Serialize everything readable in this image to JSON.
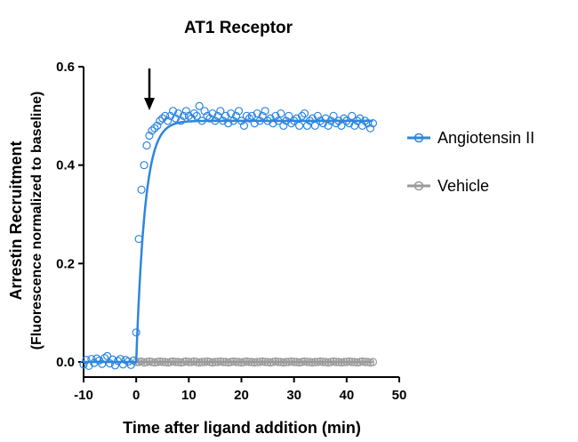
{
  "chart_data": {
    "type": "scatter",
    "title": "AT1 Receptor",
    "xlabel": "Time after ligand addition (min)",
    "ylabel_line1": "Arrestin Recruitment",
    "ylabel_line2": "(Fluorescence normalized to baseline)",
    "xlim": [
      -10,
      50
    ],
    "ylim": [
      0,
      0.6
    ],
    "x_ticks": [
      -10,
      0,
      10,
      20,
      30,
      40,
      50
    ],
    "x_tick_labels": [
      "-10",
      "0",
      "10",
      "20",
      "30",
      "40",
      "50"
    ],
    "y_ticks": [
      0,
      0.2,
      0.4,
      0.6
    ],
    "y_tick_labels": [
      "0.0",
      "0.2",
      "0.4",
      "0.6"
    ],
    "annotation": {
      "type": "arrow",
      "x": 2,
      "meaning": "ligand addition"
    },
    "legend_position": "right",
    "grid": false,
    "series": [
      {
        "name": "Angiotensin II",
        "color": "#2e86de",
        "fit": {
          "type": "exponential-rise",
          "start_x": 0,
          "plateau": 0.49
        },
        "x": [
          -10,
          -9.5,
          -9,
          -8.5,
          -8,
          -7.5,
          -7,
          -6.5,
          -6,
          -5.5,
          -5,
          -4.5,
          -4,
          -3.5,
          -3,
          -2.5,
          -2,
          -1.5,
          -1,
          -0.5,
          0,
          0.5,
          1,
          1.5,
          2,
          2.5,
          3,
          3.5,
          4,
          4.5,
          5,
          5.5,
          6,
          6.5,
          7,
          7.5,
          8,
          8.5,
          9,
          9.5,
          10,
          10.5,
          11,
          11.5,
          12,
          12.5,
          13,
          13.5,
          14,
          14.5,
          15,
          15.5,
          16,
          16.5,
          17,
          17.5,
          18,
          18.5,
          19,
          19.5,
          20,
          20.5,
          21,
          21.5,
          22,
          22.5,
          23,
          23.5,
          24,
          24.5,
          25,
          25.5,
          26,
          26.5,
          27,
          27.5,
          28,
          28.5,
          29,
          29.5,
          30,
          30.5,
          31,
          31.5,
          32,
          32.5,
          33,
          33.5,
          34,
          34.5,
          35,
          35.5,
          36,
          36.5,
          37,
          37.5,
          38,
          38.5,
          39,
          39.5,
          40,
          40.5,
          41,
          41.5,
          42,
          42.5,
          43,
          43.5,
          44,
          44.5,
          45
        ],
        "y": [
          -0.005,
          0.004,
          -0.008,
          0.006,
          -0.002,
          0.007,
          0.003,
          -0.004,
          0.008,
          0.012,
          -0.003,
          0.005,
          -0.007,
          0.002,
          0.006,
          -0.005,
          0.004,
          0.001,
          -0.006,
          0.003,
          0.06,
          0.25,
          0.35,
          0.4,
          0.44,
          0.46,
          0.47,
          0.475,
          0.48,
          0.49,
          0.495,
          0.5,
          0.49,
          0.5,
          0.51,
          0.495,
          0.505,
          0.49,
          0.5,
          0.51,
          0.5,
          0.495,
          0.505,
          0.5,
          0.52,
          0.49,
          0.51,
          0.5,
          0.495,
          0.505,
          0.49,
          0.5,
          0.51,
          0.49,
          0.5,
          0.485,
          0.505,
          0.49,
          0.5,
          0.51,
          0.49,
          0.48,
          0.5,
          0.495,
          0.5,
          0.485,
          0.505,
          0.49,
          0.5,
          0.51,
          0.49,
          0.495,
          0.485,
          0.5,
          0.49,
          0.505,
          0.48,
          0.49,
          0.5,
          0.485,
          0.49,
          0.495,
          0.48,
          0.5,
          0.505,
          0.48,
          0.49,
          0.495,
          0.48,
          0.5,
          0.49,
          0.485,
          0.495,
          0.48,
          0.49,
          0.5,
          0.485,
          0.49,
          0.48,
          0.495,
          0.49,
          0.485,
          0.5,
          0.48,
          0.49,
          0.495,
          0.48,
          0.49,
          0.485,
          0.475,
          0.485
        ]
      },
      {
        "name": "Vehicle",
        "color": "#9a9a9a",
        "fit": {
          "type": "flat",
          "value": 0.0
        },
        "x": [
          0,
          0.5,
          1,
          1.5,
          2,
          2.5,
          3,
          3.5,
          4,
          4.5,
          5,
          5.5,
          6,
          6.5,
          7,
          7.5,
          8,
          8.5,
          9,
          9.5,
          10,
          10.5,
          11,
          11.5,
          12,
          12.5,
          13,
          13.5,
          14,
          14.5,
          15,
          15.5,
          16,
          16.5,
          17,
          17.5,
          18,
          18.5,
          19,
          19.5,
          20,
          20.5,
          21,
          21.5,
          22,
          22.5,
          23,
          23.5,
          24,
          24.5,
          25,
          25.5,
          26,
          26.5,
          27,
          27.5,
          28,
          28.5,
          29,
          29.5,
          30,
          30.5,
          31,
          31.5,
          32,
          32.5,
          33,
          33.5,
          34,
          34.5,
          35,
          35.5,
          36,
          36.5,
          37,
          37.5,
          38,
          38.5,
          39,
          39.5,
          40,
          40.5,
          41,
          41.5,
          42,
          42.5,
          43,
          43.5,
          44,
          44.5,
          45
        ],
        "y": [
          0.0,
          0.0,
          0.001,
          -0.001,
          0.0,
          0.001,
          0.0,
          -0.001,
          0.0,
          0.001,
          0.0,
          0.0,
          -0.001,
          0.0,
          0.001,
          0.0,
          0.0,
          -0.001,
          0.0,
          0.001,
          0.0,
          0.0,
          0.001,
          0.0,
          -0.001,
          0.0,
          0.0,
          0.001,
          0.0,
          -0.001,
          0.0,
          0.0,
          0.001,
          0.0,
          0.0,
          -0.001,
          0.0,
          0.001,
          0.0,
          0.0,
          -0.001,
          0.0,
          0.001,
          0.0,
          0.0,
          -0.001,
          0.0,
          0.0,
          0.001,
          0.0,
          0.0,
          -0.001,
          0.0,
          0.001,
          0.0,
          0.0,
          -0.001,
          0.0,
          0.0,
          0.001,
          0.0,
          0.0,
          -0.001,
          0.0,
          0.001,
          0.0,
          0.0,
          -0.001,
          0.0,
          0.0,
          0.001,
          0.0,
          0.0,
          -0.001,
          0.0,
          0.001,
          0.0,
          0.0,
          -0.001,
          0.0,
          0.0,
          0.001,
          0.0,
          0.0,
          -0.001,
          0.0,
          0.001,
          0.0,
          0.0,
          -0.001,
          0.0
        ]
      }
    ]
  }
}
